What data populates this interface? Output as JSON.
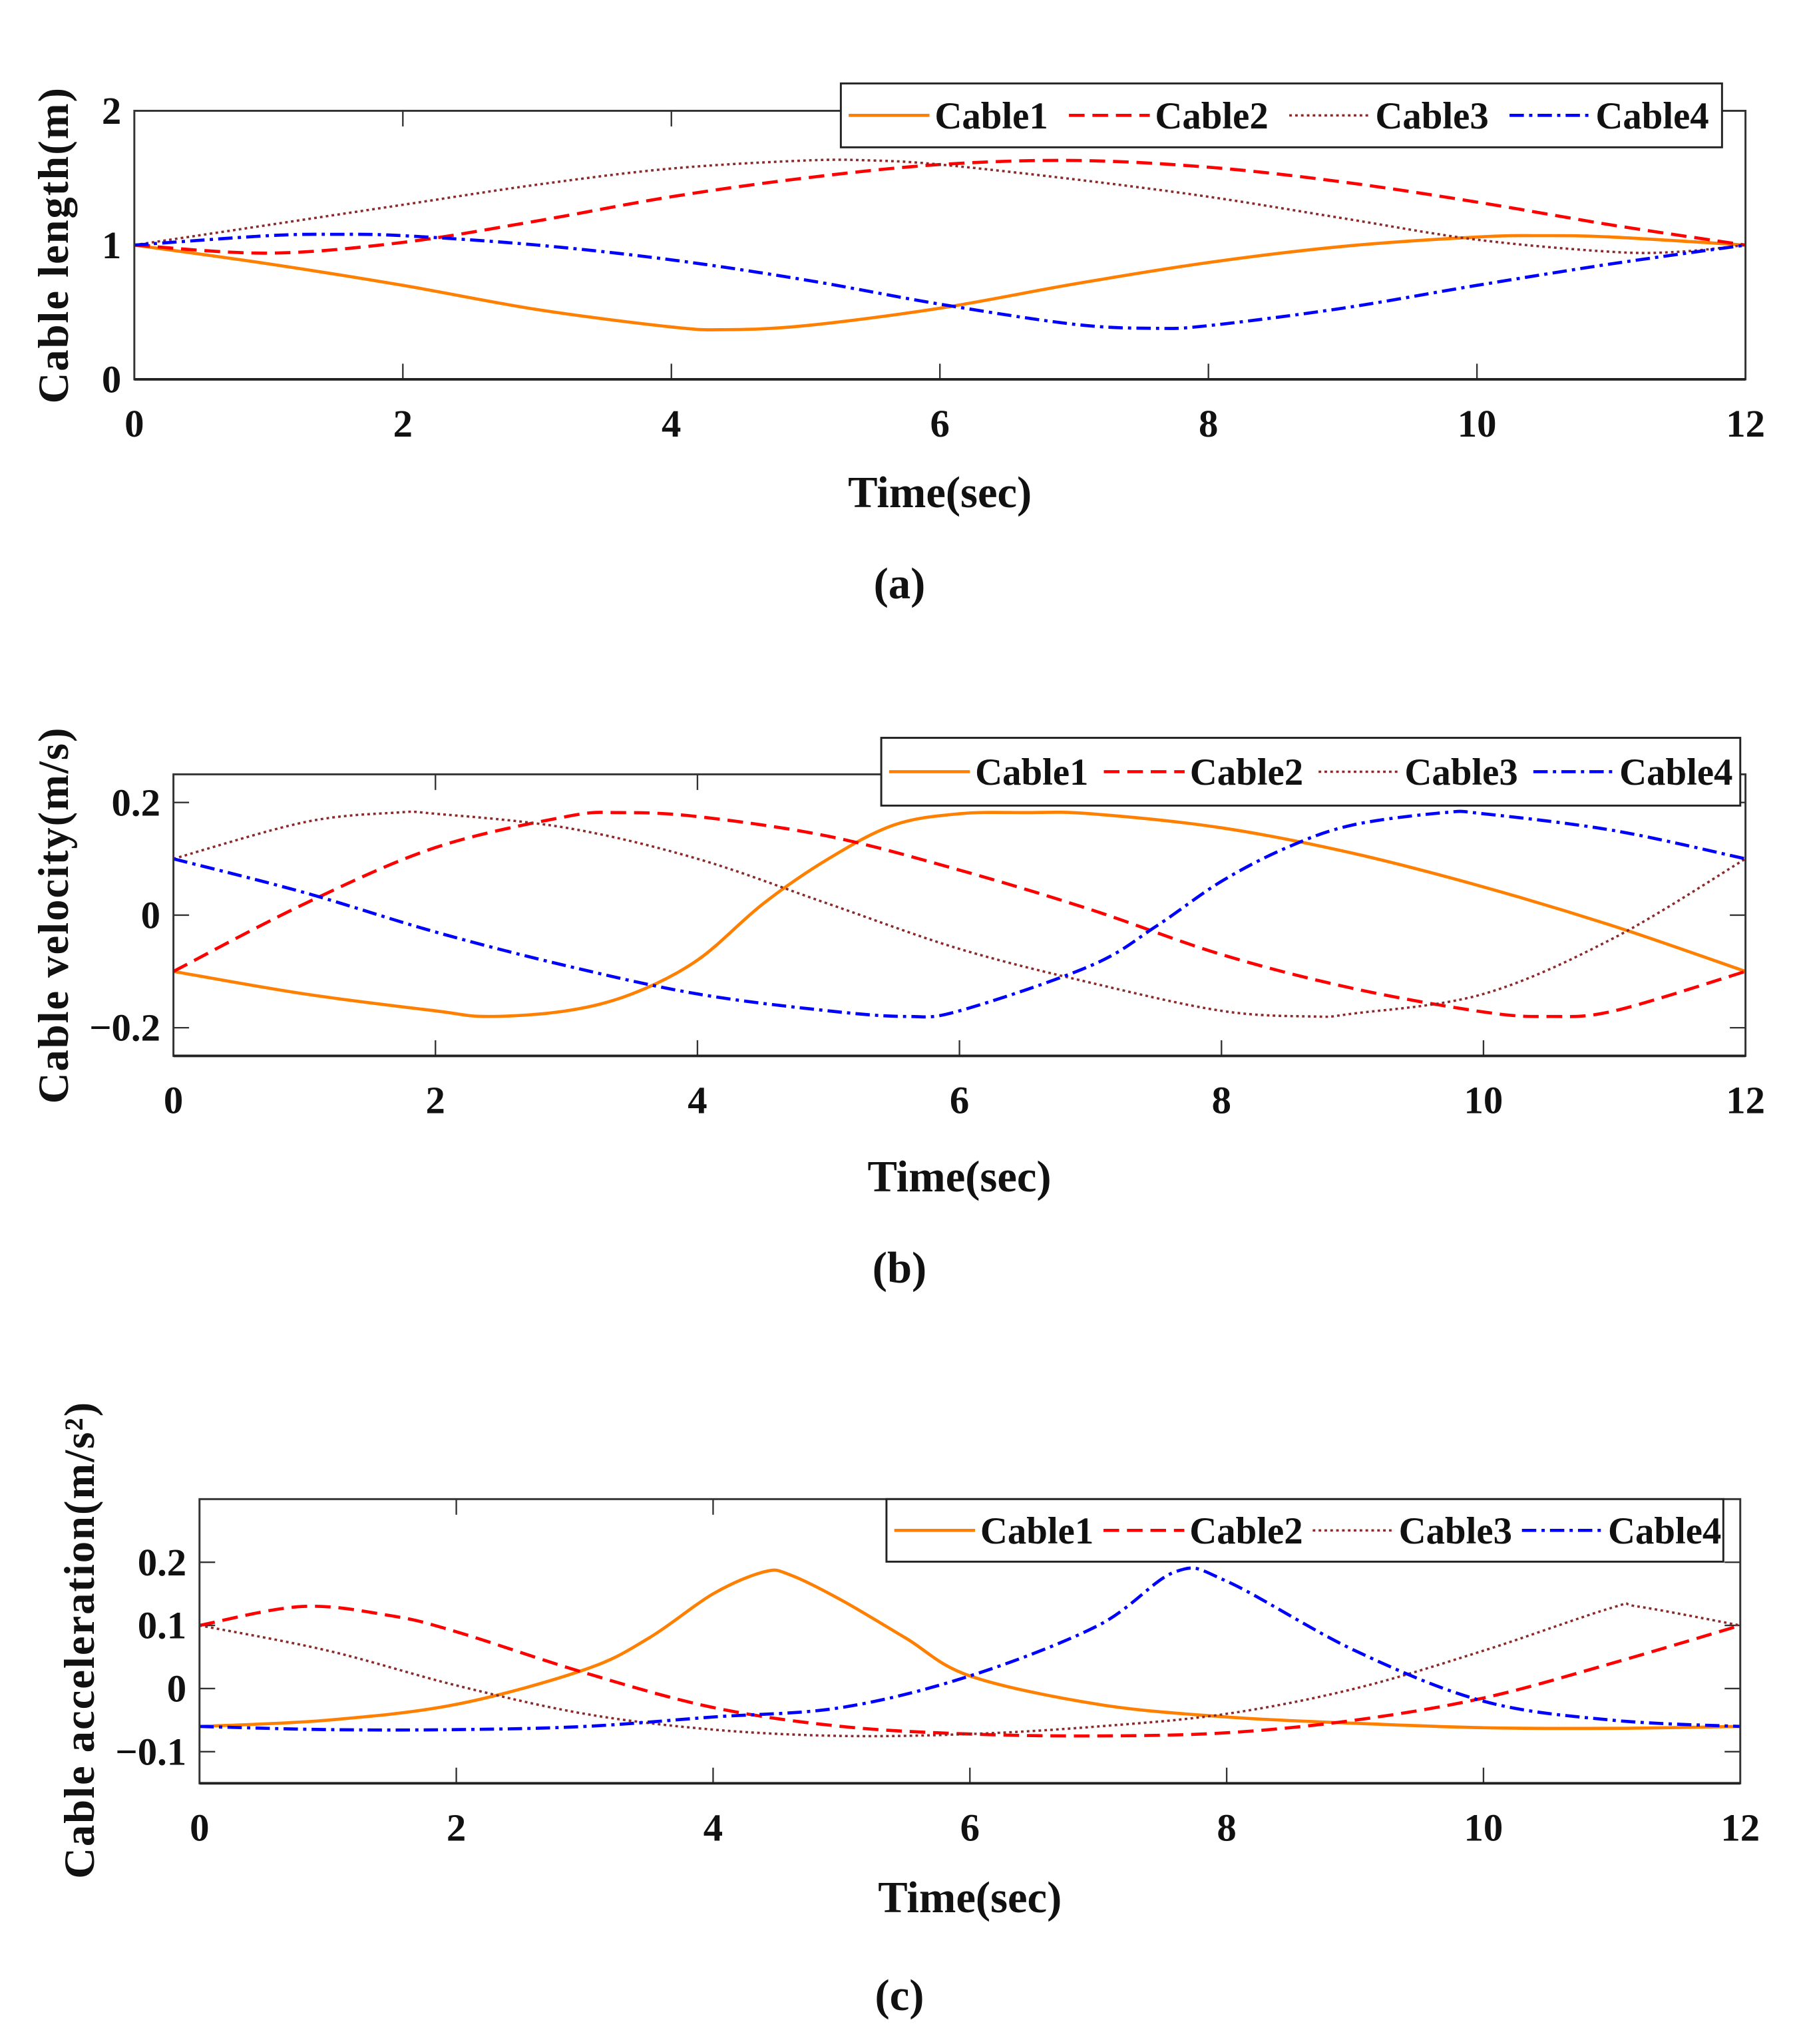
{
  "chart_data": [
    {
      "type": "line",
      "panel_caption": "a",
      "xlabel": "Time(sec)",
      "ylabel": "Cable length(m)",
      "xlim": [
        0,
        12
      ],
      "ylim": [
        0,
        2
      ],
      "xticks": [
        0,
        2,
        4,
        6,
        8,
        10,
        12
      ],
      "yticks": [
        0,
        1,
        2
      ],
      "ytick_labels": [
        "0",
        "1",
        "2"
      ],
      "grid": false,
      "legend": "top-right",
      "series": [
        {
          "name": "Cable1",
          "color": "#ff8000",
          "style": "solid",
          "x": [
            0,
            1,
            2,
            3,
            4,
            4.4,
            5,
            6,
            7,
            8,
            9,
            10,
            10.5,
            11,
            12
          ],
          "y": [
            1.0,
            0.86,
            0.7,
            0.52,
            0.39,
            0.37,
            0.4,
            0.53,
            0.71,
            0.87,
            0.99,
            1.06,
            1.07,
            1.06,
            1.0
          ]
        },
        {
          "name": "Cable2",
          "color": "#ff0000",
          "style": "dashed",
          "x": [
            0,
            1,
            2,
            3,
            4,
            5,
            6,
            7,
            8,
            9,
            10,
            11,
            12
          ],
          "y": [
            1.0,
            0.94,
            1.02,
            1.18,
            1.36,
            1.5,
            1.6,
            1.63,
            1.58,
            1.47,
            1.32,
            1.15,
            1.0
          ]
        },
        {
          "name": "Cable3",
          "color": "#8b2a2a",
          "style": "dotted",
          "x": [
            0,
            1,
            2,
            3,
            4,
            5,
            5.5,
            6,
            7,
            8,
            9,
            10,
            11,
            11.5,
            12
          ],
          "y": [
            1.0,
            1.15,
            1.3,
            1.45,
            1.57,
            1.63,
            1.63,
            1.6,
            1.49,
            1.36,
            1.2,
            1.04,
            0.95,
            0.95,
            1.0
          ]
        },
        {
          "name": "Cable4",
          "color": "#0000ff",
          "style": "dashdot",
          "x": [
            0,
            1,
            1.5,
            2,
            3,
            4,
            5,
            6,
            7,
            7.6,
            8,
            9,
            10,
            11,
            12
          ],
          "y": [
            1.0,
            1.07,
            1.08,
            1.07,
            1.0,
            0.89,
            0.74,
            0.56,
            0.41,
            0.38,
            0.4,
            0.53,
            0.7,
            0.86,
            1.0
          ]
        }
      ]
    },
    {
      "type": "line",
      "panel_caption": "b",
      "xlabel": "Time(sec)",
      "ylabel": "Cable velocity(m/s)",
      "xlim": [
        0,
        12
      ],
      "ylim": [
        -0.25,
        0.25
      ],
      "xticks": [
        0,
        2,
        4,
        6,
        8,
        10,
        12
      ],
      "yticks": [
        -0.2,
        0,
        0.2
      ],
      "ytick_labels": [
        "−0.2",
        "0",
        "0.2"
      ],
      "grid": false,
      "legend": "top-right",
      "series": [
        {
          "name": "Cable1",
          "color": "#ff8000",
          "style": "solid",
          "x": [
            0,
            1,
            2,
            2.4,
            3,
            3.5,
            4,
            4.5,
            5,
            5.5,
            6,
            6.5,
            7,
            8,
            9,
            10,
            11,
            12
          ],
          "y": [
            -0.1,
            -0.14,
            -0.17,
            -0.18,
            -0.17,
            -0.14,
            -0.08,
            0.02,
            0.1,
            0.16,
            0.18,
            0.182,
            0.18,
            0.155,
            0.11,
            0.05,
            -0.02,
            -0.1
          ]
        },
        {
          "name": "Cable2",
          "color": "#ff0000",
          "style": "dashed",
          "x": [
            0,
            1,
            2,
            3,
            3.4,
            4,
            5,
            6,
            7,
            8,
            9,
            10,
            10.5,
            11,
            12
          ],
          "y": [
            -0.1,
            0.02,
            0.12,
            0.175,
            0.182,
            0.175,
            0.14,
            0.08,
            0.01,
            -0.07,
            -0.13,
            -0.172,
            -0.18,
            -0.17,
            -0.1
          ]
        },
        {
          "name": "Cable3",
          "color": "#8b2a2a",
          "style": "dotted",
          "x": [
            0,
            1,
            1.7,
            2,
            3,
            4,
            5,
            6,
            7,
            8,
            8.7,
            9,
            10,
            11,
            12
          ],
          "y": [
            0.1,
            0.165,
            0.182,
            0.18,
            0.155,
            0.1,
            0.02,
            -0.06,
            -0.12,
            -0.17,
            -0.18,
            -0.175,
            -0.14,
            -0.04,
            0.1
          ]
        },
        {
          "name": "Cable4",
          "color": "#0000ff",
          "style": "dashdot",
          "x": [
            0,
            1,
            2,
            3,
            4,
            5,
            5.6,
            6,
            7,
            7.5,
            8,
            8.5,
            9,
            9.7,
            10,
            11,
            12
          ],
          "y": [
            0.1,
            0.04,
            -0.03,
            -0.09,
            -0.14,
            -0.17,
            -0.18,
            -0.17,
            -0.09,
            -0.02,
            0.06,
            0.12,
            0.16,
            0.182,
            0.18,
            0.15,
            0.1
          ]
        }
      ]
    },
    {
      "type": "line",
      "panel_caption": "c",
      "xlabel": "Time(sec)",
      "ylabel": "Cable acceleration(m/s²)",
      "xlim": [
        0,
        12
      ],
      "ylim": [
        -0.15,
        0.3
      ],
      "xticks": [
        0,
        2,
        4,
        6,
        8,
        10,
        12
      ],
      "yticks": [
        -0.1,
        0,
        0.1,
        0.2
      ],
      "ytick_labels": [
        "−0.1",
        "0",
        "0.1",
        "0.2"
      ],
      "grid": false,
      "legend": "top-right",
      "series": [
        {
          "name": "Cable1",
          "color": "#ff8000",
          "style": "solid",
          "x": [
            0,
            1,
            2,
            3,
            3.5,
            4,
            4.4,
            4.6,
            5,
            5.5,
            6,
            7,
            8,
            9,
            10,
            11,
            12
          ],
          "y": [
            -0.06,
            -0.05,
            -0.025,
            0.03,
            0.08,
            0.15,
            0.185,
            0.18,
            0.14,
            0.08,
            0.02,
            -0.025,
            -0.045,
            -0.055,
            -0.062,
            -0.063,
            -0.06
          ]
        },
        {
          "name": "Cable2",
          "color": "#ff0000",
          "style": "dashed",
          "x": [
            0,
            0.8,
            1.5,
            2,
            3,
            4,
            5,
            6,
            7,
            8,
            9,
            10,
            11,
            12
          ],
          "y": [
            0.1,
            0.13,
            0.115,
            0.09,
            0.025,
            -0.03,
            -0.06,
            -0.072,
            -0.075,
            -0.07,
            -0.05,
            -0.015,
            0.04,
            0.1
          ]
        },
        {
          "name": "Cable3",
          "color": "#8b2a2a",
          "style": "dotted",
          "x": [
            0,
            1,
            2,
            3,
            4,
            5,
            6,
            7,
            8,
            9,
            10,
            11,
            11.2,
            12
          ],
          "y": [
            0.1,
            0.06,
            0.005,
            -0.04,
            -0.065,
            -0.075,
            -0.072,
            -0.06,
            -0.04,
            0.0,
            0.06,
            0.128,
            0.13,
            0.1
          ]
        },
        {
          "name": "Cable4",
          "color": "#0000ff",
          "style": "dashdot",
          "x": [
            0,
            1,
            2,
            3,
            4,
            5,
            6,
            7,
            7.6,
            8,
            9,
            10,
            11,
            12
          ],
          "y": [
            -0.06,
            -0.065,
            -0.065,
            -0.06,
            -0.045,
            -0.03,
            0.02,
            0.1,
            0.185,
            0.17,
            0.06,
            -0.02,
            -0.05,
            -0.06
          ]
        }
      ]
    }
  ],
  "captions": [
    "(a)",
    "(b)",
    "(c)"
  ]
}
